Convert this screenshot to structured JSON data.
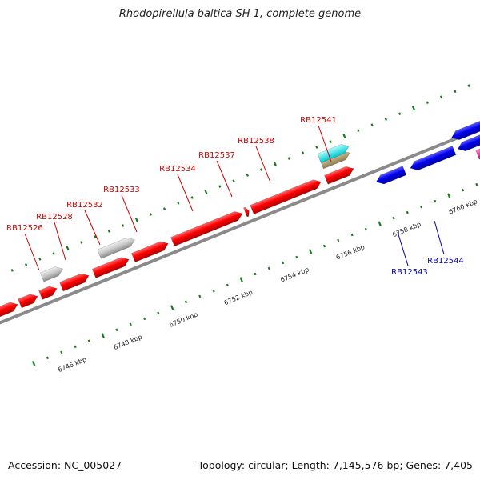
{
  "title": "Rhodopirellula baltica SH 1, complete genome",
  "footer": {
    "accession": "Accession: NC_005027",
    "summary": "Topology: circular; Length: 7,145,576 bp; Genes: 7,405"
  },
  "colors": {
    "forward_gene": "#ff0000",
    "reverse_gene": "#0000ee",
    "forward_label": "#cc0000",
    "reverse_label": "#0000aa",
    "gray_feature": "#c8c8c8",
    "tick": "#1a7a1a",
    "backbone": "#8a8a8a",
    "cyan_feature": "#00e5ee",
    "olive_feature": "#b8a878",
    "magenta_feature": "#ff22aa"
  },
  "scale_ticks": [
    "6746 kbp",
    "6748 kbp",
    "6750 kbp",
    "6752 kbp",
    "6754 kbp",
    "6756 kbp",
    "6758 kbp",
    "6760 kbp"
  ],
  "forward_gene_labels": [
    "RB12526",
    "RB12528",
    "RB12532",
    "RB12533",
    "RB12534",
    "RB12537",
    "RB12538",
    "RB12541"
  ],
  "reverse_gene_labels": [
    "RB12543",
    "RB12544"
  ]
}
